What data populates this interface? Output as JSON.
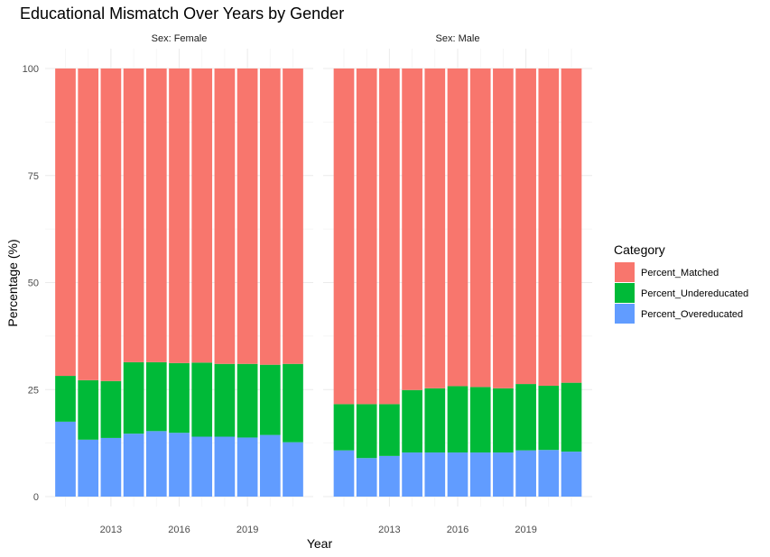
{
  "chart_data": {
    "type": "bar",
    "stacked": true,
    "title": "Educational Mismatch Over Years by Gender",
    "xlabel": "Year",
    "ylabel": "Percentage (%)",
    "ylim": [
      0,
      100
    ],
    "x": [
      2011,
      2012,
      2013,
      2014,
      2015,
      2016,
      2017,
      2018,
      2019,
      2020,
      2021
    ],
    "x_ticks": [
      "2013",
      "2016",
      "2019"
    ],
    "y_ticks": [
      "0",
      "25",
      "50",
      "75",
      "100"
    ],
    "grid": true,
    "legend": {
      "title": "Category",
      "position": "right",
      "entries": [
        {
          "label": "Percent_Matched",
          "color": "#F8766D"
        },
        {
          "label": "Percent_Undereducated",
          "color": "#00BA38"
        },
        {
          "label": "Percent_Overeducated",
          "color": "#619CFF"
        }
      ]
    },
    "facets": [
      {
        "label": "Sex: Female",
        "series": [
          {
            "name": "Percent_Overeducated",
            "values": [
              17.5,
              13.3,
              13.7,
              14.7,
              15.3,
              14.9,
              14.0,
              14.0,
              13.8,
              14.4,
              12.7
            ]
          },
          {
            "name": "Percent_Undereducated",
            "values": [
              10.7,
              13.9,
              13.3,
              16.7,
              16.1,
              16.3,
              17.3,
              17.0,
              17.2,
              16.4,
              18.3
            ]
          },
          {
            "name": "Percent_Matched",
            "values": [
              71.8,
              72.8,
              73.0,
              68.6,
              68.6,
              68.8,
              68.7,
              69.0,
              69.0,
              69.2,
              69.0
            ]
          }
        ]
      },
      {
        "label": "Sex: Male",
        "series": [
          {
            "name": "Percent_Overeducated",
            "values": [
              10.8,
              9.0,
              9.5,
              10.3,
              10.3,
              10.3,
              10.3,
              10.3,
              10.8,
              10.9,
              10.5
            ]
          },
          {
            "name": "Percent_Undereducated",
            "values": [
              10.8,
              12.6,
              12.1,
              14.6,
              15.0,
              15.5,
              15.3,
              15.0,
              15.5,
              15.0,
              16.1
            ]
          },
          {
            "name": "Percent_Matched",
            "values": [
              78.4,
              78.4,
              78.4,
              75.1,
              74.7,
              74.2,
              74.4,
              74.7,
              73.7,
              74.1,
              73.4
            ]
          }
        ]
      }
    ]
  }
}
